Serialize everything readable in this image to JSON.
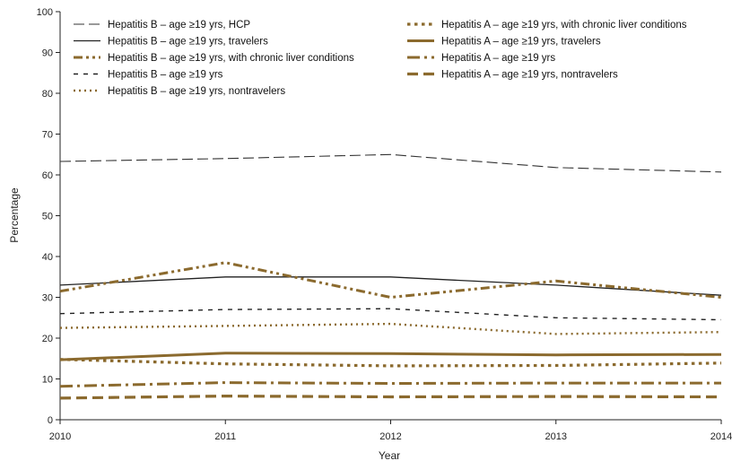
{
  "chart_data": {
    "type": "line",
    "xlabel": "Year",
    "ylabel": "Percentage",
    "ylim": [
      0,
      100
    ],
    "y_ticks": [
      0,
      10,
      20,
      30,
      40,
      50,
      60,
      70,
      80,
      90,
      100
    ],
    "x": [
      2010,
      2011,
      2012,
      2013,
      2014
    ],
    "x_tick_labels": [
      "2010",
      "2011",
      "2012",
      "2013",
      "2014"
    ],
    "grid": false,
    "legend_position": "top",
    "series": [
      {
        "name": "Hepatitis B – age ≥19 yrs, HCP",
        "values": [
          63.3,
          64.0,
          65.0,
          61.8,
          60.7
        ],
        "color": "#333333",
        "style": "long-dash-thin"
      },
      {
        "name": "Hepatitis B – age ≥19 yrs, travelers",
        "values": [
          33.0,
          35.0,
          35.0,
          33.0,
          30.5
        ],
        "color": "#222222",
        "style": "solid-thin"
      },
      {
        "name": "Hepatitis B – age ≥19 yrs, with chronic liver conditions",
        "values": [
          31.5,
          38.5,
          30.0,
          34.0,
          30.0
        ],
        "color": "#8b6a2e",
        "style": "dash-dot-thick"
      },
      {
        "name": "Hepatitis B – age ≥19 yrs",
        "values": [
          26.0,
          27.0,
          27.2,
          25.0,
          24.5
        ],
        "color": "#222222",
        "style": "short-dash-thin"
      },
      {
        "name": "Hepatitis B – age ≥19 yrs, nontravelers",
        "values": [
          22.5,
          23.0,
          23.5,
          21.0,
          21.5
        ],
        "color": "#8b6a2e",
        "style": "dot"
      },
      {
        "name": "Hepatitis A – age ≥19 yrs, with chronic liver conditions",
        "values": [
          14.8,
          13.7,
          13.2,
          13.3,
          13.9
        ],
        "color": "#8b6a2e",
        "style": "dot-thick"
      },
      {
        "name": "Hepatitis A – age ≥19 yrs, travelers",
        "values": [
          14.7,
          16.3,
          16.2,
          15.9,
          16.0
        ],
        "color": "#8b6a2e",
        "style": "solid-thick"
      },
      {
        "name": "Hepatitis A – age ≥19 yrs",
        "values": [
          8.2,
          9.1,
          8.9,
          9.0,
          9.0
        ],
        "color": "#8b6a2e",
        "style": "dash-dot-thick-b"
      },
      {
        "name": "Hepatitis A – age ≥19 yrs, nontravelers",
        "values": [
          5.3,
          5.8,
          5.6,
          5.7,
          5.6
        ],
        "color": "#8b6a2e",
        "style": "long-dash-thick"
      }
    ]
  }
}
